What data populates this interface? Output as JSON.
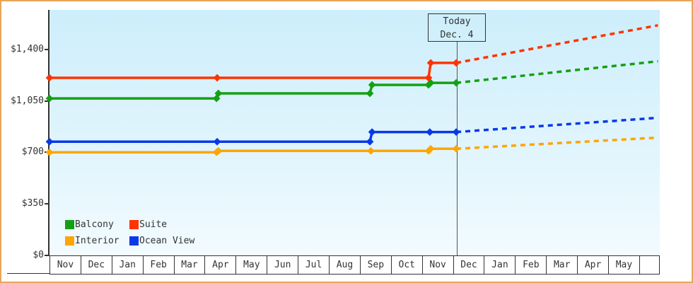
{
  "frame": {
    "border_color": "#E9A55B",
    "background": "#FFFFFF"
  },
  "chart_data": {
    "type": "line",
    "description": "Cabin price history (solid step lines) and forecast (dashed) by cabin category",
    "plot_bg_top": "#CDEEFB",
    "plot_bg_bottom": "#F2FBFF",
    "grid": "off",
    "legend_position": "bottom-left",
    "y_axis": {
      "ylim": [
        0,
        1450
      ],
      "ticks": [
        {
          "label": "$0",
          "value": 0
        },
        {
          "label": "$350",
          "value": 350
        },
        {
          "label": "$700",
          "value": 700
        },
        {
          "label": "$1,050",
          "value": 1050
        },
        {
          "label": "$1,400",
          "value": 1400
        }
      ]
    },
    "x_axis": {
      "months": [
        "Nov",
        "Dec",
        "Jan",
        "Feb",
        "Mar",
        "Apr",
        "May",
        "Jun",
        "Jul",
        "Aug",
        "Sep",
        "Oct",
        "Nov",
        "Dec",
        "Jan",
        "Feb",
        "Mar",
        "Apr",
        "May"
      ]
    },
    "today": {
      "line1": "Today",
      "line2": "Dec. 4",
      "month_position": 13.1
    },
    "series": [
      {
        "name": "Balcony",
        "color": "#14A014",
        "history": [
          [
            0,
            1067
          ],
          [
            5.38,
            1067
          ],
          [
            5.44,
            1101
          ],
          [
            10.32,
            1101
          ],
          [
            10.39,
            1159
          ],
          [
            12.21,
            1159
          ],
          [
            12.28,
            1173
          ],
          [
            13.1,
            1173
          ]
        ],
        "forecast": [
          [
            13.1,
            1173
          ],
          [
            19.6,
            1320
          ]
        ]
      },
      {
        "name": "Suite",
        "color": "#FF3300",
        "history": [
          [
            0,
            1207
          ],
          [
            5.4,
            1207
          ],
          [
            12.21,
            1207
          ],
          [
            12.28,
            1309
          ],
          [
            13.1,
            1309
          ]
        ],
        "forecast": [
          [
            13.1,
            1309
          ],
          [
            19.6,
            1565
          ]
        ]
      },
      {
        "name": "Interior",
        "color": "#FFA500",
        "history": [
          [
            0,
            700
          ],
          [
            5.38,
            700
          ],
          [
            5.44,
            710
          ],
          [
            10.35,
            710
          ],
          [
            12.21,
            710
          ],
          [
            12.28,
            724
          ],
          [
            13.1,
            724
          ]
        ],
        "forecast": [
          [
            13.1,
            724
          ],
          [
            19.6,
            800
          ]
        ]
      },
      {
        "name": "Ocean View",
        "color": "#0839E8",
        "history": [
          [
            0,
            772
          ],
          [
            5.4,
            772
          ],
          [
            10.32,
            772
          ],
          [
            10.39,
            838
          ],
          [
            12.25,
            838
          ],
          [
            13.1,
            838
          ]
        ],
        "forecast": [
          [
            13.1,
            838
          ],
          [
            19.6,
            935
          ]
        ]
      }
    ],
    "legend_order": [
      "Balcony",
      "Suite",
      "Interior",
      "Ocean View"
    ]
  }
}
